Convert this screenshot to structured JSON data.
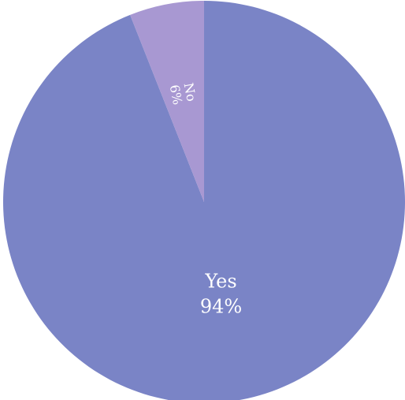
{
  "chart_data": {
    "type": "pie",
    "slices": [
      {
        "label": "Yes",
        "percent_label": "94%",
        "value": 94,
        "color": "#7a84c6"
      },
      {
        "label": "No",
        "percent_label": "6%",
        "value": 6,
        "color": "#a898d2"
      }
    ],
    "start_angle_deg": 0,
    "direction": "clockwise"
  }
}
